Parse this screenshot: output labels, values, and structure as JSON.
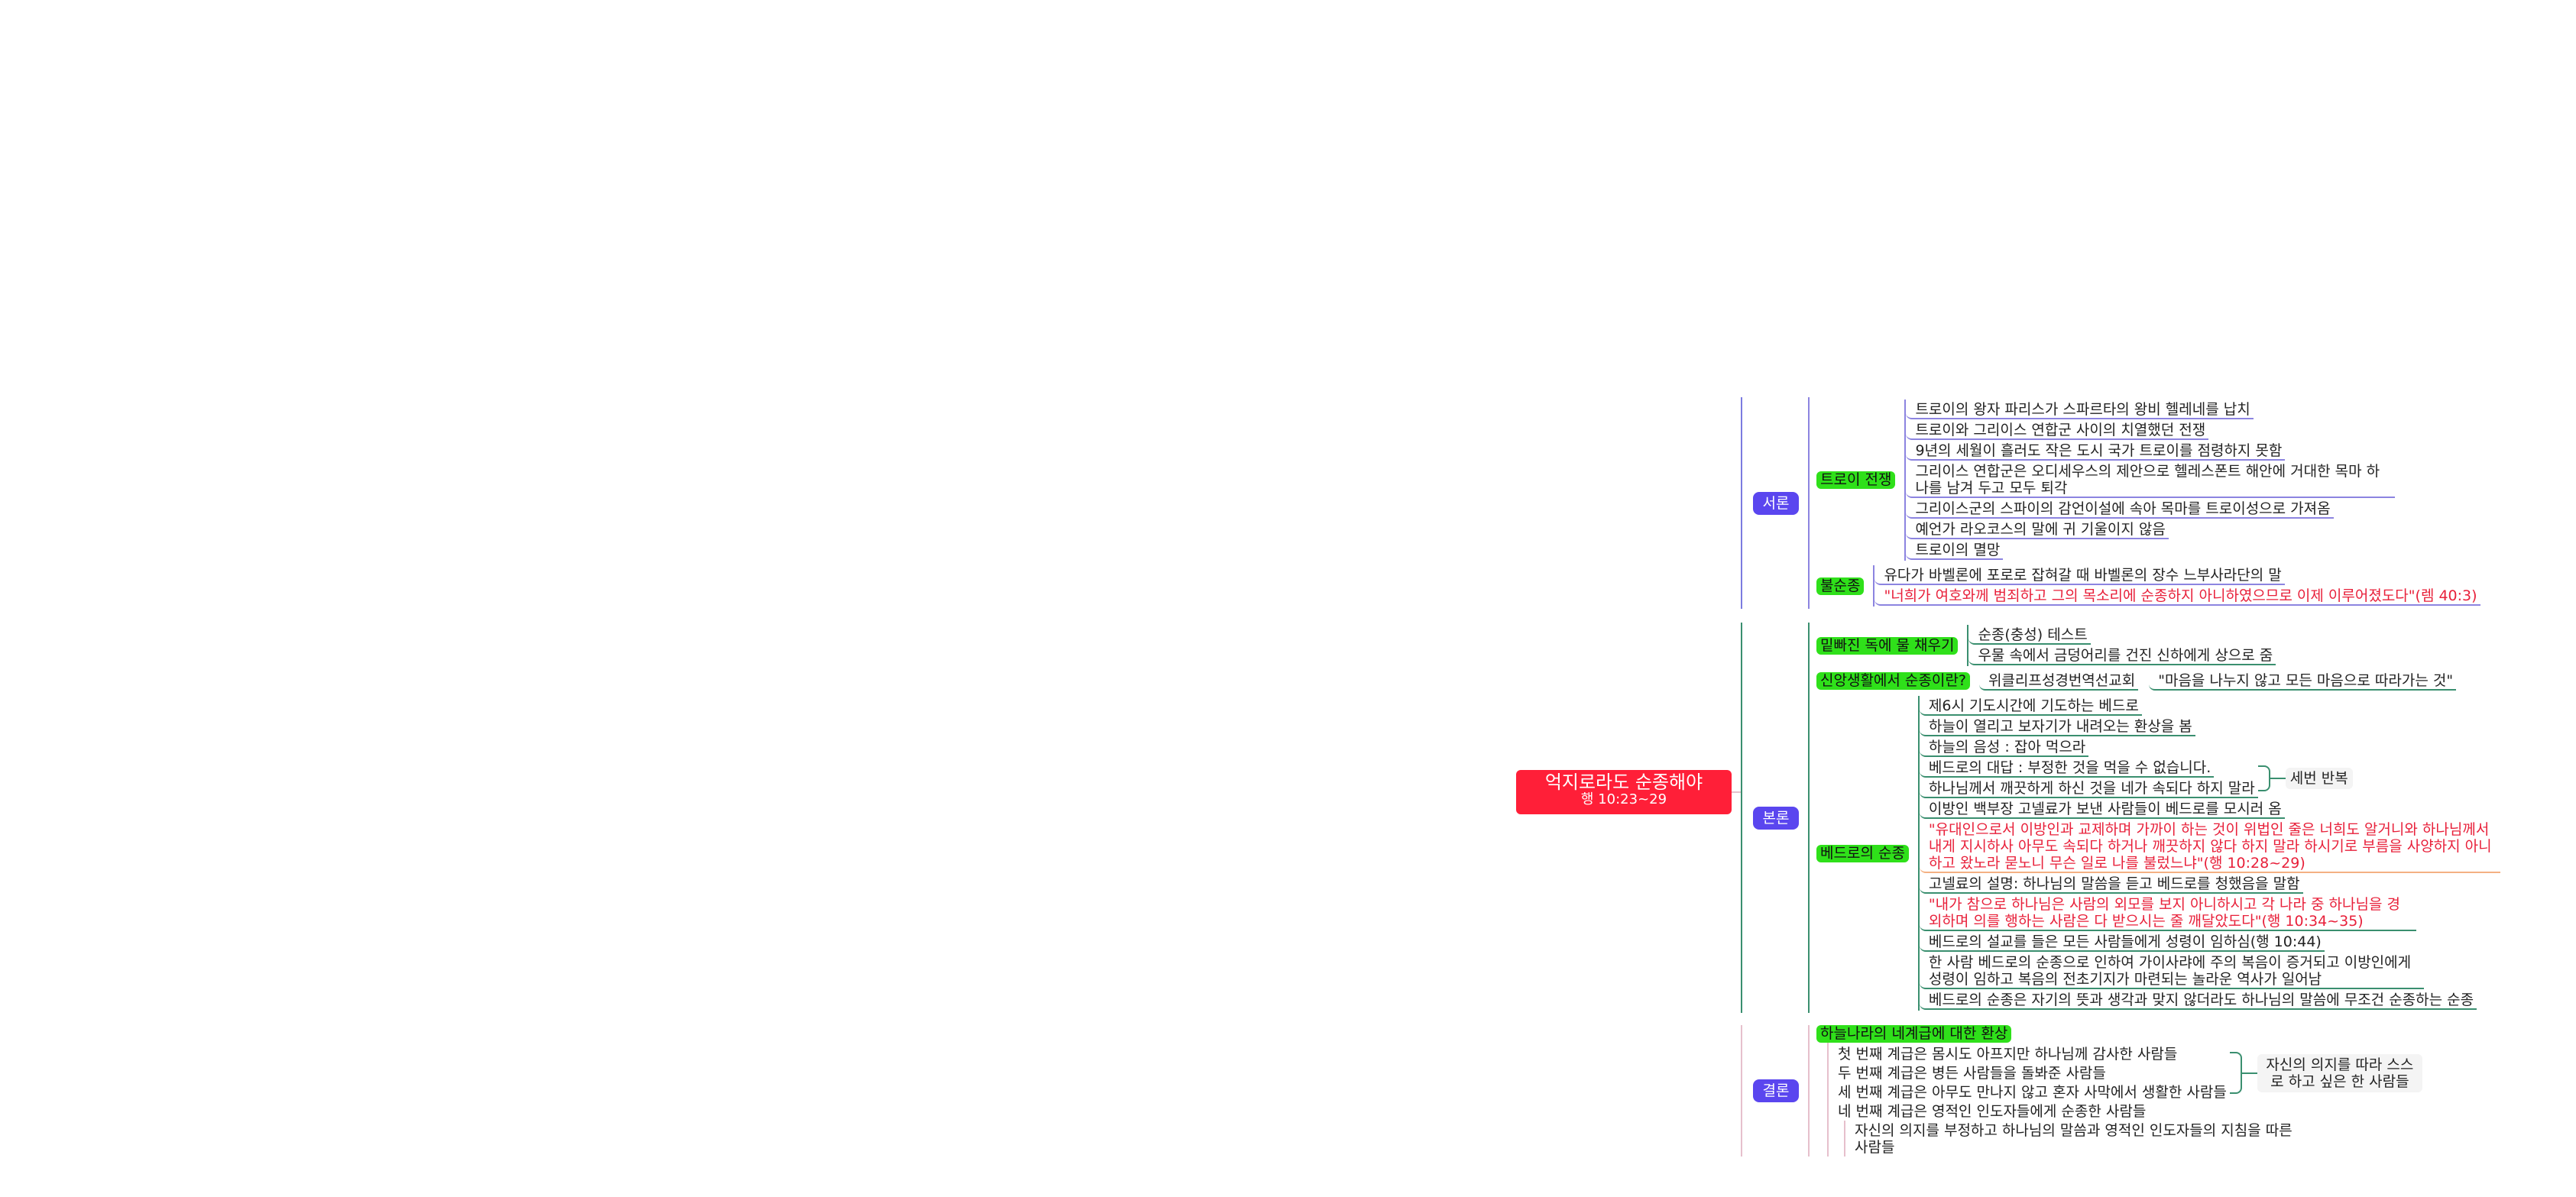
{
  "root": {
    "title": "억지로라도 순종해야",
    "subtitle": "행 10:23~29"
  },
  "intro": {
    "label": "서론",
    "troy": {
      "label": "트로이 전쟁",
      "items": [
        "트로이의 왕자 파리스가 스파르타의 왕비 헬레네를 납치",
        "트로이와 그리이스 연합군 사이의 치열했던 전쟁",
        "9년의 세월이 흘러도 작은 도시 국가 트로이를 점령하지 못함",
        "그리이스 연합군은 오디세우스의 제안으로 헬레스폰트 해안에 거대한 목마 하나를 남겨 두고 모두 퇴각",
        "그리이스군의 스파이의 감언이설에 속아 목마를 트로이성으로 가져옴",
        "예언가 라오코스의 말에 귀 기울이지 않음",
        "트로이의 멸망"
      ]
    },
    "disobedience": {
      "label": "불순종",
      "items": [
        "유다가 바벨론에 포로로 잡혀갈 때 바벨론의 장수 느부사라단의 말",
        "\"너희가 여호와께 범죄하고 그의 목소리에 순종하지 아니하였으므로 이제 이루어졌도다\"(렘 40:3)"
      ]
    }
  },
  "body": {
    "label": "본론",
    "jar": {
      "label": "밑빠진 독에 물 채우기",
      "items": [
        "순종(충성) 테스트",
        "우물 속에서 금덩어리를 건진 신하에게 상으로 줌"
      ]
    },
    "faith": {
      "label": "신앙생활에서 순종이란?",
      "source": "위클리프성경번역선교회",
      "definition": "\"마음을 나누지 않고 모든 마음으로 따라가는 것\""
    },
    "peter": {
      "label": "베드로의 순종",
      "items": [
        "제6시 기도시간에 기도하는 베드로",
        "하늘이 열리고 보자기가 내려오는 환상을 봄",
        "하늘의 음성 : 잡아 먹으라",
        "베드로의 대답 : 부정한 것을 먹을 수 없습니다.",
        "하나님께서 깨끗하게 하신 것을 네가 속되다 하지 말라",
        "이방인 백부장 고넬료가 보낸 사람들이 베드로를 모시러 옴",
        "\"유대인으로서 이방인과 교제하며 가까이 하는 것이 위법인 줄은 너희도 알거니와 하나님께서 내게 지시하사 아무도 속되다 하거나 깨끗하지 않다 하지 말라 하시기로 부름을 사양하지 아니하고 왔노라 묻노니 무슨 일로 나를 불렀느냐\"(행 10:28~29)",
        "고넬료의 설명: 하나님의 말씀을 듣고 베드로를 청했음을 말함",
        "\"내가 참으로 하나님은 사람의 외모를 보지 아니하시고 각 나라 중 하나님을 경외하며 의를 행하는 사람은 다 받으시는 줄 깨달았도다\"(행 10:34~35)",
        "베드로의 설교를 들은 모든 사람들에게 성령이 임하심(행 10:44)",
        "한 사람 베드로의 순종으로 인하여 가이사랴에 주의 복음이 증거되고 이방인에게 성령이 임하고 복음의 전초기지가 마련되는 놀라운 역사가 일어남",
        "베드로의 순종은 자기의 뜻과 생각과 맞지 않더라도 하나님의 말씀에 무조건 순종하는 순종"
      ],
      "repeat_note": "세번 반복"
    }
  },
  "conclusion": {
    "label": "결론",
    "vision": {
      "label": "하늘나라의 네계급에 대한 환상",
      "items": [
        "첫 번째 계급은 몸시도 아프지만 하나님께 감사한 사람들",
        "두 번째 계급은 병든 사람들을 돌봐준 사람들",
        "세 번째 계급은 아무도 만나지 않고 혼자 사막에서 생활한 사람들",
        "네 번째 계급은 영적인 인도자들에게 순종한 사람들"
      ],
      "sub_item": "자신의 의지를 부정하고 하나님의 말씀과 영적인 인도자들의 지침을 따른 사람들",
      "note": "자신의 의지를 따라 스스로 하고 싶은 한 사람들"
    }
  },
  "colors": {
    "root": "#ff1f38",
    "main_topic": "#5a46ef",
    "sub_topic": "#2fe01a",
    "quote_text": "#e8203a",
    "intro_line": "#8c84e0",
    "body_line": "#3a8f6f",
    "conclusion_line": "#e6c0cc"
  }
}
